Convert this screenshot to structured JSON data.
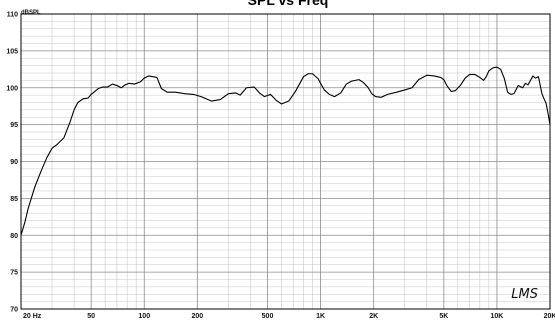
{
  "chart_data": {
    "type": "line",
    "title": "SPL vs Freq",
    "ylabel": "dBSPL",
    "xlabel": "",
    "x_scale": "log",
    "xlim": [
      20,
      20000
    ],
    "ylim": [
      70,
      110
    ],
    "grid": true,
    "x_tick_values": [
      20,
      50,
      100,
      200,
      500,
      1000,
      2000,
      5000,
      10000,
      20000
    ],
    "x_tick_labels": [
      "20 Hz",
      "50",
      "100",
      "200",
      "500",
      "1K",
      "2K",
      "5K",
      "10K",
      "20K"
    ],
    "y_ticks": [
      70,
      75,
      80,
      85,
      90,
      95,
      100,
      105,
      110
    ],
    "series": [
      {
        "x": [
          20,
          21,
          22,
          24,
          26,
          28,
          30,
          32,
          35,
          38,
          40,
          42,
          45,
          48,
          50,
          55,
          58,
          62,
          66,
          70,
          74,
          78,
          82,
          88,
          95,
          100,
          106,
          112,
          118,
          125,
          135,
          150,
          170,
          190,
          210,
          240,
          270,
          300,
          330,
          350,
          380,
          420,
          450,
          480,
          520,
          560,
          600,
          660,
          720,
          800,
          850,
          900,
          970,
          1000,
          1050,
          1120,
          1200,
          1300,
          1400,
          1500,
          1650,
          1750,
          1850,
          1950,
          2050,
          2200,
          2400,
          2700,
          3000,
          3300,
          3600,
          4000,
          4400,
          4800,
          5000,
          5200,
          5500,
          5800,
          6200,
          6600,
          7000,
          7500,
          8000,
          8400,
          8700,
          9000,
          9500,
          10000,
          10500,
          11000,
          11500,
          12000,
          12500,
          13200,
          14000,
          14500,
          15000,
          15500,
          16000,
          16500,
          17200,
          18000,
          18500,
          19000,
          19500,
          20000
        ],
        "values": [
          80,
          81.7,
          83.7,
          86.6,
          88.7,
          90.5,
          91.8,
          92.3,
          93.2,
          95.4,
          97.0,
          98.0,
          98.5,
          98.6,
          99.1,
          99.9,
          100.1,
          100.1,
          100.5,
          100.3,
          100.0,
          100.4,
          100.6,
          100.5,
          100.8,
          101.3,
          101.6,
          101.5,
          101.4,
          99.9,
          99.4,
          99.4,
          99.2,
          99.1,
          98.8,
          98.2,
          98.4,
          99.2,
          99.3,
          99.0,
          100.0,
          100.1,
          99.3,
          98.8,
          99.1,
          98.3,
          97.8,
          98.2,
          99.5,
          101.5,
          101.9,
          101.9,
          101.2,
          100.6,
          99.7,
          99.1,
          98.8,
          99.3,
          100.5,
          100.9,
          101.1,
          100.7,
          100.1,
          99.2,
          98.8,
          98.7,
          99.1,
          99.4,
          99.7,
          100.0,
          101.1,
          101.7,
          101.6,
          101.4,
          101.1,
          100.3,
          99.5,
          99.6,
          100.3,
          101.3,
          101.8,
          101.8,
          101.4,
          101.0,
          101.5,
          102.3,
          102.7,
          102.8,
          102.5,
          101.3,
          99.4,
          99.1,
          99.2,
          100.3,
          100.0,
          100.6,
          100.4,
          101.0,
          101.6,
          101.3,
          101.5,
          99.2,
          98.5,
          97.9,
          96.5,
          95.0
        ]
      }
    ]
  },
  "logo": {
    "text": "LMS"
  }
}
